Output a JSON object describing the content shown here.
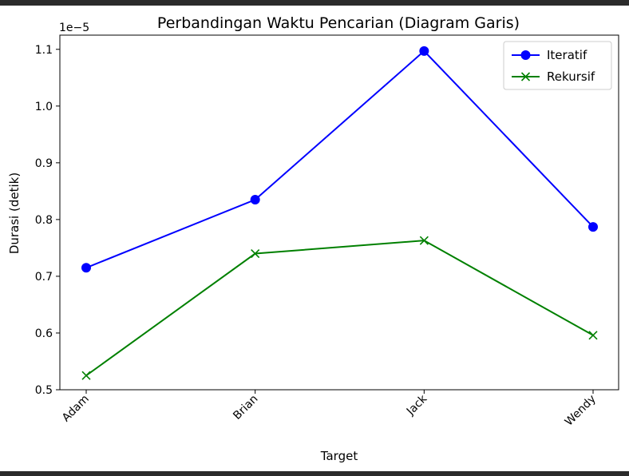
{
  "chart_data": {
    "type": "line",
    "title": "Perbandingan Waktu Pencarian (Diagram Garis)",
    "xlabel": "Target",
    "ylabel": "Durasi (detik)",
    "y_offset_label": "1e−5",
    "categories": [
      "Adam",
      "Brian",
      "Jack",
      "Wendy"
    ],
    "y_ticks": [
      "0.5",
      "0.6",
      "0.7",
      "0.8",
      "0.9",
      "1.0",
      "1.1"
    ],
    "ylim": [
      0.5,
      1.125
    ],
    "grid": false,
    "legend_position": "top-right",
    "series": [
      {
        "name": "Iteratif",
        "values": [
          0.715,
          0.835,
          1.097,
          0.787
        ],
        "color": "#0000ff",
        "marker": "circle"
      },
      {
        "name": "Rekursif",
        "values": [
          0.525,
          0.74,
          0.763,
          0.596
        ],
        "color": "#008000",
        "marker": "x"
      }
    ]
  }
}
